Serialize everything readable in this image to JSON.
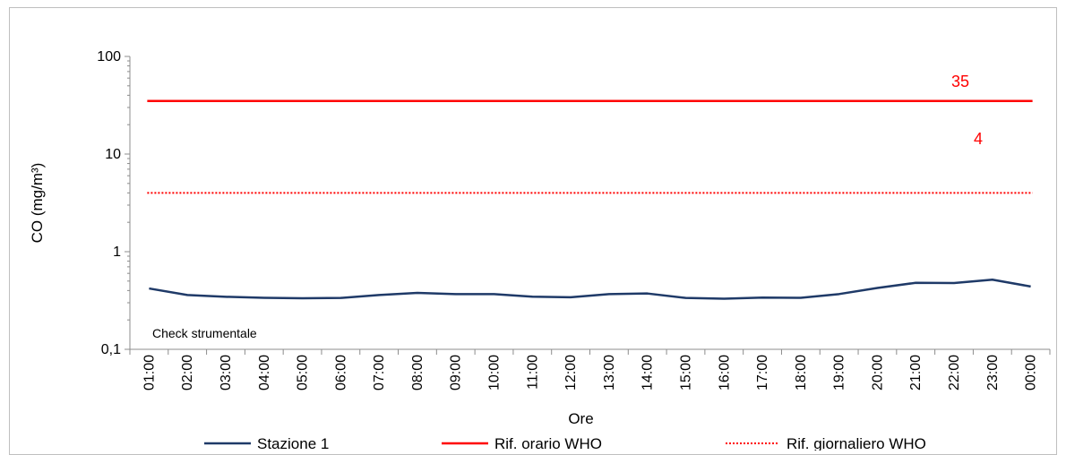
{
  "chart_data": {
    "type": "line",
    "xlabel": "Ore",
    "ylabel": "CO (mg/m³)",
    "yscale": "log",
    "ylim": [
      0.1,
      100
    ],
    "y_ticks": [
      "0,1",
      "1",
      "10",
      "100"
    ],
    "categories": [
      "01:00",
      "02:00",
      "03:00",
      "04:00",
      "05:00",
      "06:00",
      "07:00",
      "08:00",
      "09:00",
      "10:00",
      "11:00",
      "12:00",
      "13:00",
      "14:00",
      "15:00",
      "16:00",
      "17:00",
      "18:00",
      "19:00",
      "20:00",
      "21:00",
      "22:00",
      "23:00",
      "00:00"
    ],
    "series": [
      {
        "name": "Stazione 1",
        "color": "#1f3a68",
        "style": "solid",
        "values": [
          0.42,
          0.36,
          0.345,
          0.337,
          0.333,
          0.336,
          0.36,
          0.378,
          0.368,
          0.368,
          0.346,
          0.341,
          0.368,
          0.373,
          0.336,
          0.33,
          0.339,
          0.337,
          0.368,
          0.425,
          0.48,
          0.478,
          0.517,
          0.44
        ]
      },
      {
        "name": "Rif. orario WHO",
        "color": "#ff0000",
        "style": "solid",
        "constant": 35
      },
      {
        "name": "Rif. giornaliero WHO",
        "color": "#ff0000",
        "style": "dotted",
        "constant": 4
      }
    ],
    "annotations": [
      {
        "text": "35",
        "color": "#ff0000"
      },
      {
        "text": "4",
        "color": "#ff0000"
      },
      {
        "text": "Check strumentale",
        "color": "#000000"
      }
    ],
    "legend_position": "bottom",
    "grid": false
  }
}
